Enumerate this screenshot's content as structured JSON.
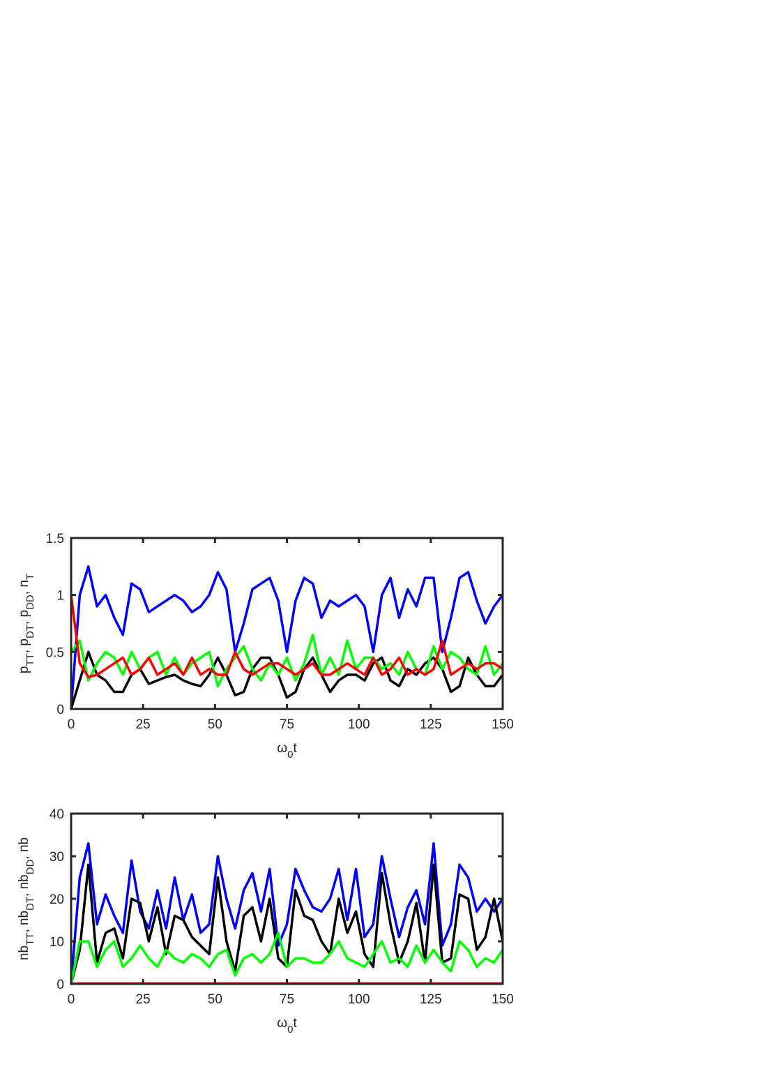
{
  "chart_data": [
    {
      "type": "line",
      "xlabel": [
        {
          "text": "ω"
        },
        {
          "text": "0",
          "sub": true
        },
        {
          "text": "t"
        }
      ],
      "ylabel": [
        {
          "text": "p"
        },
        {
          "text": "TT",
          "sub": true
        },
        {
          "text": ", p"
        },
        {
          "text": "DT",
          "sub": true
        },
        {
          "text": ", p"
        },
        {
          "text": "DD",
          "sub": true
        },
        {
          "text": ", n"
        },
        {
          "text": "T",
          "sub": true
        }
      ],
      "x": [
        0,
        3,
        6,
        9,
        12,
        15,
        18,
        21,
        24,
        27,
        30,
        33,
        36,
        39,
        42,
        45,
        48,
        51,
        54,
        57,
        60,
        63,
        66,
        69,
        72,
        75,
        78,
        81,
        84,
        87,
        90,
        93,
        96,
        99,
        102,
        105,
        108,
        111,
        114,
        117,
        120,
        123,
        126,
        129,
        132,
        135,
        138,
        141,
        144,
        147,
        150
      ],
      "xlim": [
        0,
        150
      ],
      "xticks": [
        0,
        25,
        50,
        75,
        100,
        125,
        150
      ],
      "ylim": [
        0,
        1.5
      ],
      "yticks": [
        0,
        0.5,
        1,
        1.5
      ],
      "series": [
        {
          "color": "#0000ff",
          "values": [
            0,
            1.0,
            1.25,
            0.9,
            1.0,
            0.8,
            0.65,
            1.1,
            1.05,
            0.85,
            0.9,
            0.95,
            1.0,
            0.95,
            0.85,
            0.9,
            1.0,
            1.2,
            1.05,
            0.5,
            0.75,
            1.05,
            1.1,
            1.15,
            0.95,
            0.5,
            0.95,
            1.15,
            1.1,
            0.8,
            0.95,
            0.9,
            0.95,
            1.0,
            0.9,
            0.5,
            1.0,
            1.15,
            0.8,
            1.05,
            0.9,
            1.15,
            1.15,
            0.5,
            0.8,
            1.15,
            1.2,
            0.95,
            0.75,
            0.9,
            1.0
          ]
        },
        {
          "color": "#000000",
          "values": [
            0,
            0.25,
            0.5,
            0.3,
            0.25,
            0.15,
            0.15,
            0.3,
            0.35,
            0.22,
            0.25,
            0.28,
            0.3,
            0.25,
            0.22,
            0.2,
            0.3,
            0.45,
            0.3,
            0.12,
            0.15,
            0.35,
            0.45,
            0.45,
            0.3,
            0.1,
            0.15,
            0.35,
            0.45,
            0.3,
            0.15,
            0.25,
            0.3,
            0.3,
            0.25,
            0.4,
            0.45,
            0.25,
            0.2,
            0.35,
            0.3,
            0.4,
            0.45,
            0.35,
            0.15,
            0.2,
            0.45,
            0.3,
            0.2,
            0.2,
            0.3
          ]
        },
        {
          "color": "#00ff00",
          "values": [
            0.5,
            0.6,
            0.25,
            0.4,
            0.5,
            0.45,
            0.3,
            0.5,
            0.35,
            0.45,
            0.5,
            0.3,
            0.45,
            0.3,
            0.4,
            0.45,
            0.5,
            0.2,
            0.35,
            0.45,
            0.55,
            0.35,
            0.25,
            0.4,
            0.3,
            0.45,
            0.25,
            0.4,
            0.65,
            0.3,
            0.45,
            0.3,
            0.6,
            0.35,
            0.45,
            0.45,
            0.35,
            0.4,
            0.3,
            0.5,
            0.35,
            0.3,
            0.55,
            0.35,
            0.5,
            0.45,
            0.35,
            0.3,
            0.55,
            0.3,
            0.4
          ]
        },
        {
          "color": "#ff0000",
          "values": [
            1,
            0.4,
            0.28,
            0.3,
            0.35,
            0.4,
            0.45,
            0.3,
            0.35,
            0.45,
            0.3,
            0.35,
            0.4,
            0.3,
            0.45,
            0.3,
            0.35,
            0.3,
            0.3,
            0.5,
            0.35,
            0.3,
            0.35,
            0.4,
            0.4,
            0.35,
            0.3,
            0.35,
            0.4,
            0.3,
            0.3,
            0.35,
            0.4,
            0.35,
            0.3,
            0.45,
            0.3,
            0.35,
            0.45,
            0.3,
            0.35,
            0.3,
            0.35,
            0.6,
            0.3,
            0.35,
            0.4,
            0.35,
            0.4,
            0.4,
            0.35
          ]
        }
      ]
    },
    {
      "type": "line",
      "xlabel": [
        {
          "text": "ω"
        },
        {
          "text": "0",
          "sub": true
        },
        {
          "text": "t"
        }
      ],
      "ylabel": [
        {
          "text": "nb"
        },
        {
          "text": "TT",
          "sub": true
        },
        {
          "text": ", nb"
        },
        {
          "text": "DT",
          "sub": true
        },
        {
          "text": ", nb"
        },
        {
          "text": "DD",
          "sub": true
        },
        {
          "text": ", nb"
        }
      ],
      "x": [
        0,
        3,
        6,
        9,
        12,
        15,
        18,
        21,
        24,
        27,
        30,
        33,
        36,
        39,
        42,
        45,
        48,
        51,
        54,
        57,
        60,
        63,
        66,
        69,
        72,
        75,
        78,
        81,
        84,
        87,
        90,
        93,
        96,
        99,
        102,
        105,
        108,
        111,
        114,
        117,
        120,
        123,
        126,
        129,
        132,
        135,
        138,
        141,
        144,
        147,
        150
      ],
      "xlim": [
        0,
        150
      ],
      "xticks": [
        0,
        25,
        50,
        75,
        100,
        125,
        150
      ],
      "ylim": [
        0,
        40
      ],
      "yticks": [
        0,
        10,
        20,
        30,
        40
      ],
      "series": [
        {
          "color": "#ff0000",
          "values": [
            0,
            0.1,
            0.1,
            0.1,
            0.1,
            0.1,
            0.1,
            0.1,
            0.1,
            0.1,
            0.1,
            0.1,
            0.1,
            0.1,
            0.1,
            0.1,
            0.1,
            0.1,
            0.1,
            0.1,
            0.1,
            0.1,
            0.1,
            0.1,
            0.1,
            0.1,
            0.1,
            0.1,
            0.1,
            0.1,
            0.1,
            0.1,
            0.1,
            0.1,
            0.1,
            0.1,
            0.1,
            0.1,
            0.1,
            0.1,
            0.1,
            0.1,
            0.1,
            0.1,
            0.1,
            0.1,
            0.1,
            0.1,
            0.1,
            0.1,
            0.1
          ]
        },
        {
          "color": "#0000ff",
          "values": [
            0,
            25,
            33,
            14,
            21,
            16,
            12,
            29,
            17,
            13,
            22,
            13,
            25,
            15,
            21,
            12,
            14,
            30,
            20,
            13,
            22,
            26,
            17,
            27,
            9,
            14,
            27,
            22,
            18,
            17,
            20,
            27,
            15,
            27,
            11,
            14,
            30,
            20,
            11,
            18,
            22,
            14,
            33,
            9,
            14,
            28,
            25,
            17,
            20,
            17,
            20
          ]
        },
        {
          "color": "#000000",
          "values": [
            0,
            8,
            28,
            5,
            12,
            13,
            6,
            20,
            19,
            10,
            18,
            7,
            16,
            15,
            11,
            9,
            7,
            25,
            10,
            3,
            16,
            18,
            10,
            20,
            6,
            4,
            22,
            16,
            15,
            10,
            7,
            20,
            12,
            17,
            7,
            4,
            26,
            14,
            5,
            10,
            19,
            5,
            28,
            5,
            6,
            21,
            20,
            8,
            11,
            20,
            10
          ]
        },
        {
          "color": "#00ff00",
          "values": [
            0,
            10,
            10,
            4,
            8,
            10,
            4,
            6,
            9,
            6,
            4,
            8,
            6,
            5,
            7,
            6,
            4,
            7,
            8,
            2,
            6,
            7,
            5,
            7,
            12,
            4,
            6,
            6,
            5,
            5,
            7,
            10,
            6,
            5,
            4,
            7,
            10,
            5,
            6,
            4,
            9,
            5,
            8,
            5,
            3,
            10,
            8,
            4,
            6,
            5,
            8
          ]
        }
      ]
    }
  ]
}
